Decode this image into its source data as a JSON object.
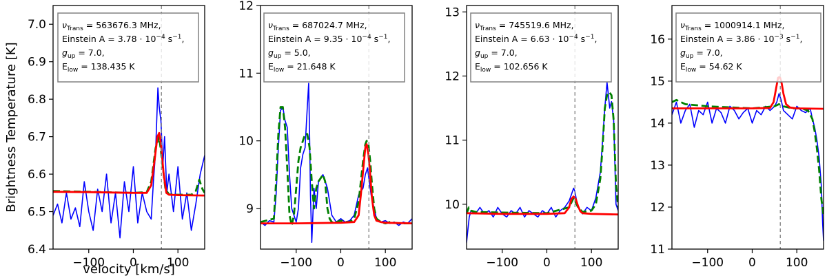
{
  "chart_data": [
    {
      "type": "line",
      "ylabel": "Brightness Temperature [K]",
      "xlabel": "velocity [km/s]",
      "xlim": [
        -180,
        160
      ],
      "ylim": [
        6.4,
        7.05
      ],
      "yticks": [
        6.4,
        6.5,
        6.6,
        6.7,
        6.8,
        6.9,
        7.0
      ],
      "ytick_labels": [
        "6.4",
        "6.5",
        "6.6",
        "6.7",
        "6.8",
        "6.9",
        "7.0"
      ],
      "xticks": [
        -100,
        0,
        100
      ],
      "xtick_labels": [
        "−100",
        "0",
        "100"
      ],
      "vline_x": 63,
      "info": {
        "trans_prefix": "ν",
        "trans_sub": "Trans",
        "trans_value": " = 563676.3 MHz,",
        "einstein_prefix": "Einstein A = 3.78 · 10",
        "einstein_exp": "−4",
        "einstein_suffix": " s",
        "gup_prefix": "g",
        "gup_sub": "up",
        "gup_value": " = 7.0,",
        "elow_prefix": "E",
        "elow_sub": "low",
        "elow_value": " = 138.435 K"
      },
      "series": [
        {
          "color": "#0000ff",
          "style": "solid",
          "x": [
            -180,
            -170,
            -160,
            -150,
            -140,
            -130,
            -120,
            -110,
            -100,
            -90,
            -80,
            -70,
            -60,
            -50,
            -40,
            -30,
            -20,
            -10,
            0,
            10,
            20,
            30,
            40,
            45,
            50,
            55,
            58,
            62,
            66,
            70,
            75,
            80,
            90,
            100,
            110,
            120,
            130,
            140,
            150,
            160
          ],
          "y": [
            6.49,
            6.52,
            6.47,
            6.55,
            6.48,
            6.51,
            6.46,
            6.58,
            6.5,
            6.45,
            6.56,
            6.5,
            6.6,
            6.47,
            6.55,
            6.43,
            6.58,
            6.5,
            6.62,
            6.47,
            6.55,
            6.5,
            6.48,
            6.58,
            6.66,
            6.83,
            6.78,
            6.74,
            6.62,
            6.7,
            6.55,
            6.6,
            6.5,
            6.62,
            6.48,
            6.55,
            6.45,
            6.52,
            6.6,
            6.65
          ]
        },
        {
          "color": "#008000",
          "style": "dashed",
          "x": [
            -180,
            -100,
            0,
            30,
            40,
            50,
            58,
            65,
            72,
            80,
            100,
            130,
            140,
            148,
            155,
            160
          ],
          "y": [
            6.555,
            6.553,
            6.55,
            6.552,
            6.58,
            6.67,
            6.7,
            6.63,
            6.56,
            6.546,
            6.545,
            6.545,
            6.555,
            6.585,
            6.56,
            6.55
          ]
        },
        {
          "color": "#ff0000",
          "style": "solid",
          "x": [
            -180,
            -100,
            0,
            30,
            40,
            48,
            54,
            58,
            62,
            68,
            74,
            80,
            100,
            160
          ],
          "y": [
            6.553,
            6.552,
            6.55,
            6.55,
            6.57,
            6.64,
            6.7,
            6.71,
            6.68,
            6.6,
            6.55,
            6.545,
            6.544,
            6.543
          ]
        }
      ]
    },
    {
      "type": "line",
      "xlim": [
        -180,
        160
      ],
      "ylim": [
        8.4,
        12.0
      ],
      "yticks": [
        9,
        10,
        11,
        12
      ],
      "ytick_labels": [
        "9",
        "10",
        "11",
        "12"
      ],
      "xticks": [
        -100,
        0,
        100
      ],
      "xtick_labels": [
        "−100",
        "0",
        "100"
      ],
      "vline_x": 63,
      "info": {
        "trans_prefix": "ν",
        "trans_sub": "Trans",
        "trans_value": " = 687024.7 MHz,",
        "einstein_prefix": "Einstein A = 9.35 · 10",
        "einstein_exp": "−4",
        "einstein_suffix": " s",
        "gup_prefix": "g",
        "gup_sub": "up",
        "gup_value": " = 5.0,",
        "elow_prefix": "E",
        "elow_sub": "low",
        "elow_value": " = 21.648 K"
      },
      "series": [
        {
          "color": "#0000ff",
          "style": "solid",
          "x": [
            -180,
            -170,
            -160,
            -150,
            -145,
            -140,
            -135,
            -130,
            -125,
            -120,
            -115,
            -110,
            -100,
            -95,
            -90,
            -85,
            -80,
            -75,
            -72,
            -70,
            -68,
            -65,
            -60,
            -55,
            -50,
            -40,
            -30,
            -20,
            -10,
            0,
            10,
            20,
            30,
            40,
            50,
            55,
            60,
            63,
            68,
            75,
            80,
            90,
            100,
            110,
            120,
            130,
            140,
            150,
            160
          ],
          "y": [
            8.8,
            8.75,
            8.82,
            8.8,
            9.2,
            9.9,
            10.45,
            10.5,
            10.3,
            10.2,
            9.5,
            9.0,
            8.8,
            9.0,
            9.6,
            9.8,
            9.9,
            10.5,
            10.85,
            10.1,
            9.2,
            8.5,
            9.3,
            9.0,
            9.4,
            9.5,
            9.3,
            8.9,
            8.8,
            8.85,
            8.8,
            8.82,
            8.9,
            9.2,
            9.3,
            9.5,
            9.6,
            9.45,
            9.2,
            9.0,
            8.85,
            8.8,
            8.82,
            8.78,
            8.8,
            8.75,
            8.8,
            8.78,
            8.85
          ]
        },
        {
          "color": "#008000",
          "style": "dashed",
          "x": [
            -180,
            -150,
            -145,
            -140,
            -135,
            -130,
            -125,
            -120,
            -115,
            -110,
            -105,
            -100,
            -95,
            -90,
            -85,
            -80,
            -75,
            -70,
            -65,
            -60,
            -55,
            -50,
            -45,
            -40,
            -35,
            -30,
            -25,
            -20,
            -15,
            -10,
            0,
            10,
            20,
            30,
            40,
            45,
            50,
            55,
            58,
            62,
            66,
            70,
            75,
            80,
            90,
            100,
            110,
            130,
            160
          ],
          "y": [
            8.8,
            8.85,
            9.4,
            10.1,
            10.5,
            10.5,
            10.2,
            9.6,
            8.9,
            8.75,
            8.9,
            9.3,
            9.7,
            9.9,
            10.0,
            10.1,
            10.1,
            9.9,
            9.4,
            9.0,
            9.3,
            9.4,
            9.45,
            9.5,
            9.4,
            9.0,
            8.85,
            8.8,
            8.78,
            8.8,
            8.82,
            8.8,
            8.8,
            8.85,
            9.1,
            9.4,
            9.7,
            9.95,
            10.0,
            9.95,
            9.7,
            9.35,
            9.0,
            8.85,
            8.8,
            8.78,
            8.8,
            8.78,
            8.78
          ]
        },
        {
          "color": "#ff0000",
          "style": "solid",
          "x": [
            -180,
            -100,
            0,
            30,
            40,
            45,
            50,
            55,
            58,
            62,
            66,
            70,
            75,
            80,
            90,
            100,
            160
          ],
          "y": [
            8.78,
            8.78,
            8.79,
            8.8,
            8.9,
            9.2,
            9.55,
            9.9,
            9.95,
            9.8,
            9.5,
            9.15,
            8.9,
            8.82,
            8.8,
            8.79,
            8.78
          ]
        }
      ]
    },
    {
      "type": "line",
      "xlim": [
        -180,
        160
      ],
      "ylim": [
        9.3,
        13.1
      ],
      "yticks": [
        10,
        11,
        12,
        13
      ],
      "ytick_labels": [
        "10",
        "11",
        "12",
        "13"
      ],
      "xticks": [
        -100,
        0,
        100
      ],
      "xtick_labels": [
        "−100",
        "0",
        "100"
      ],
      "vline_x": 63,
      "info": {
        "trans_prefix": "ν",
        "trans_sub": "Trans",
        "trans_value": " = 745519.6 MHz,",
        "einstein_prefix": "Einstein A = 6.63 · 10",
        "einstein_exp": "−4",
        "einstein_suffix": " s",
        "gup_prefix": "g",
        "gup_sub": "up",
        "gup_value": " = 7.0,",
        "elow_prefix": "E",
        "elow_sub": "low",
        "elow_value": " = 102.656 K"
      },
      "series": [
        {
          "color": "#0000ff",
          "style": "solid",
          "x": [
            -180,
            -177,
            -174,
            -170,
            -160,
            -150,
            -140,
            -130,
            -120,
            -110,
            -100,
            -90,
            -80,
            -70,
            -60,
            -50,
            -40,
            -30,
            -20,
            -10,
            0,
            10,
            20,
            30,
            40,
            50,
            55,
            60,
            63,
            68,
            75,
            80,
            90,
            100,
            110,
            120,
            125,
            130,
            135,
            138,
            141,
            145,
            150,
            155,
            160
          ],
          "y": [
            9.4,
            9.6,
            9.8,
            9.9,
            9.85,
            9.95,
            9.85,
            9.9,
            9.8,
            9.95,
            9.85,
            9.8,
            9.9,
            9.85,
            9.95,
            9.8,
            9.9,
            9.85,
            9.8,
            9.9,
            9.85,
            9.95,
            9.8,
            9.9,
            9.95,
            10.05,
            10.15,
            10.25,
            10.2,
            10.0,
            9.9,
            9.85,
            9.95,
            9.9,
            10.1,
            10.5,
            11.0,
            11.5,
            11.9,
            11.7,
            11.5,
            11.6,
            11.3,
            10.0,
            9.9
          ]
        },
        {
          "color": "#008000",
          "style": "dashed",
          "x": [
            -180,
            -175,
            -170,
            -160,
            -100,
            0,
            50,
            60,
            70,
            80,
            100,
            110,
            120,
            125,
            130,
            135,
            140,
            145,
            150,
            155,
            160
          ],
          "y": [
            9.85,
            9.95,
            9.9,
            9.88,
            9.87,
            9.86,
            9.95,
            10.1,
            9.95,
            9.88,
            9.9,
            10.0,
            10.4,
            10.9,
            11.5,
            11.7,
            11.75,
            11.7,
            11.3,
            10.3,
            9.95
          ]
        },
        {
          "color": "#ff0000",
          "style": "solid",
          "x": [
            -180,
            -100,
            0,
            40,
            50,
            55,
            60,
            65,
            70,
            75,
            80,
            100,
            160
          ],
          "y": [
            9.86,
            9.85,
            9.85,
            9.86,
            9.95,
            10.08,
            10.12,
            10.08,
            9.97,
            9.89,
            9.86,
            9.85,
            9.84
          ]
        }
      ]
    },
    {
      "type": "line",
      "xlim": [
        -180,
        160
      ],
      "ylim": [
        11.0,
        16.8
      ],
      "yticks": [
        11,
        12,
        13,
        14,
        15,
        16
      ],
      "ytick_labels": [
        "11",
        "12",
        "13",
        "14",
        "15",
        "16"
      ],
      "xticks": [
        -100,
        0,
        100
      ],
      "xtick_labels": [
        "−100",
        "0",
        "100"
      ],
      "vline_x": 63,
      "info": {
        "trans_prefix": "ν",
        "trans_sub": "Trans",
        "trans_value": " = 1000914.1 MHz,",
        "einstein_prefix": "Einstein A = 3.86 · 10",
        "einstein_exp": "−3",
        "einstein_suffix": " s",
        "gup_prefix": "g",
        "gup_sub": "up",
        "gup_value": " = 7.0,",
        "elow_prefix": "E",
        "elow_sub": "low",
        "elow_value": " = 54.62 K"
      },
      "series": [
        {
          "color": "#0000ff",
          "style": "solid",
          "x": [
            -180,
            -170,
            -160,
            -150,
            -140,
            -130,
            -120,
            -110,
            -100,
            -90,
            -80,
            -70,
            -60,
            -50,
            -40,
            -30,
            -20,
            -10,
            0,
            10,
            20,
            30,
            40,
            50,
            55,
            60,
            65,
            70,
            80,
            90,
            100,
            110,
            120,
            130,
            135,
            140,
            145,
            150,
            155,
            158,
            160
          ],
          "y": [
            14.2,
            14.5,
            14.0,
            14.3,
            14.45,
            13.9,
            14.3,
            14.2,
            14.5,
            14.0,
            14.35,
            14.25,
            14.0,
            14.4,
            14.3,
            14.1,
            14.25,
            14.35,
            14.0,
            14.3,
            14.2,
            14.4,
            14.3,
            14.4,
            14.5,
            14.7,
            14.55,
            14.3,
            14.2,
            14.1,
            14.4,
            14.3,
            14.25,
            14.35,
            14.1,
            13.9,
            13.6,
            13.2,
            12.5,
            11.6,
            11.2
          ]
        },
        {
          "color": "#008000",
          "style": "dashed",
          "x": [
            -180,
            -170,
            -150,
            -100,
            0,
            50,
            60,
            70,
            90,
            110,
            125,
            135,
            140,
            145,
            150,
            155,
            160
          ],
          "y": [
            14.5,
            14.55,
            14.45,
            14.4,
            14.35,
            14.4,
            14.45,
            14.4,
            14.35,
            14.35,
            14.3,
            14.1,
            13.8,
            13.4,
            12.9,
            12.2,
            11.8
          ]
        },
        {
          "color": "#ff0000",
          "style": "solid",
          "x": [
            -180,
            -100,
            0,
            40,
            48,
            54,
            58,
            62,
            66,
            70,
            76,
            85,
            100,
            160
          ],
          "y": [
            14.35,
            14.35,
            14.35,
            14.36,
            14.5,
            14.85,
            15.08,
            15.1,
            14.95,
            14.7,
            14.45,
            14.37,
            14.35,
            14.34
          ]
        }
      ]
    }
  ]
}
